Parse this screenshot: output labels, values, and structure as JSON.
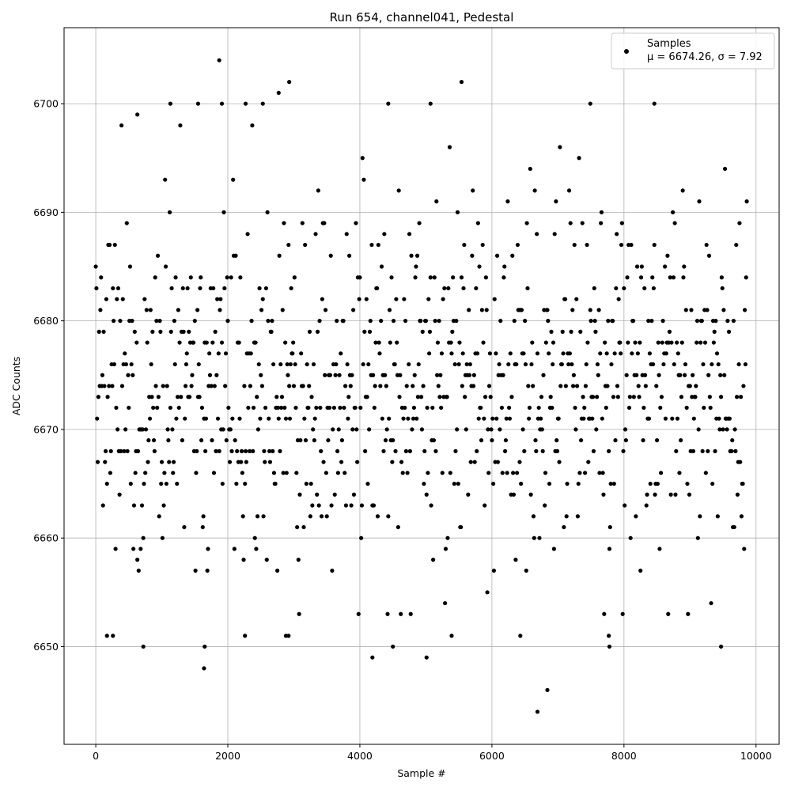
{
  "chart_data": {
    "type": "scatter",
    "title": "Run 654, channel041, Pedestal",
    "xlabel": "Sample #",
    "ylabel": "ADC Counts",
    "xlim": [
      -480,
      10350
    ],
    "ylim": [
      6641,
      6707
    ],
    "xticks": [
      0,
      2000,
      4000,
      6000,
      8000,
      10000
    ],
    "yticks": [
      6650,
      6660,
      6670,
      6680,
      6690,
      6700
    ],
    "grid": true,
    "legend": {
      "placement": "top-right",
      "entries": [
        {
          "label": "Samples",
          "stats": "μ = 6674.26, σ = 7.92"
        }
      ]
    },
    "series": [
      {
        "name": "Samples",
        "color": "#000000",
        "marker": "circle",
        "mean": 6674.26,
        "std": 7.92,
        "notable_points": [
          [
            1870,
            6704
          ],
          [
            2930,
            6702
          ],
          [
            5540,
            6702
          ],
          [
            6690,
            6644
          ],
          [
            6840,
            6646
          ],
          [
            1640,
            6648
          ],
          [
            1650,
            6650
          ],
          [
            720,
            6650
          ],
          [
            4190,
            6649
          ],
          [
            5010,
            6649
          ],
          [
            4500,
            6650
          ],
          [
            9470,
            6650
          ],
          [
            7780,
            6650
          ],
          [
            2260,
            6651
          ],
          [
            170,
            6651
          ],
          [
            260,
            6651
          ],
          [
            2880,
            6651
          ],
          [
            2920,
            6651
          ],
          [
            5390,
            6651
          ],
          [
            6430,
            6651
          ],
          [
            7770,
            6651
          ],
          [
            630,
            6699
          ],
          [
            1130,
            6700
          ],
          [
            1550,
            6700
          ],
          [
            1910,
            6700
          ],
          [
            2270,
            6700
          ],
          [
            2530,
            6700
          ],
          [
            4430,
            6700
          ],
          [
            5070,
            6700
          ],
          [
            7490,
            6700
          ],
          [
            8460,
            6700
          ],
          [
            2770,
            6701
          ]
        ]
      }
    ]
  }
}
